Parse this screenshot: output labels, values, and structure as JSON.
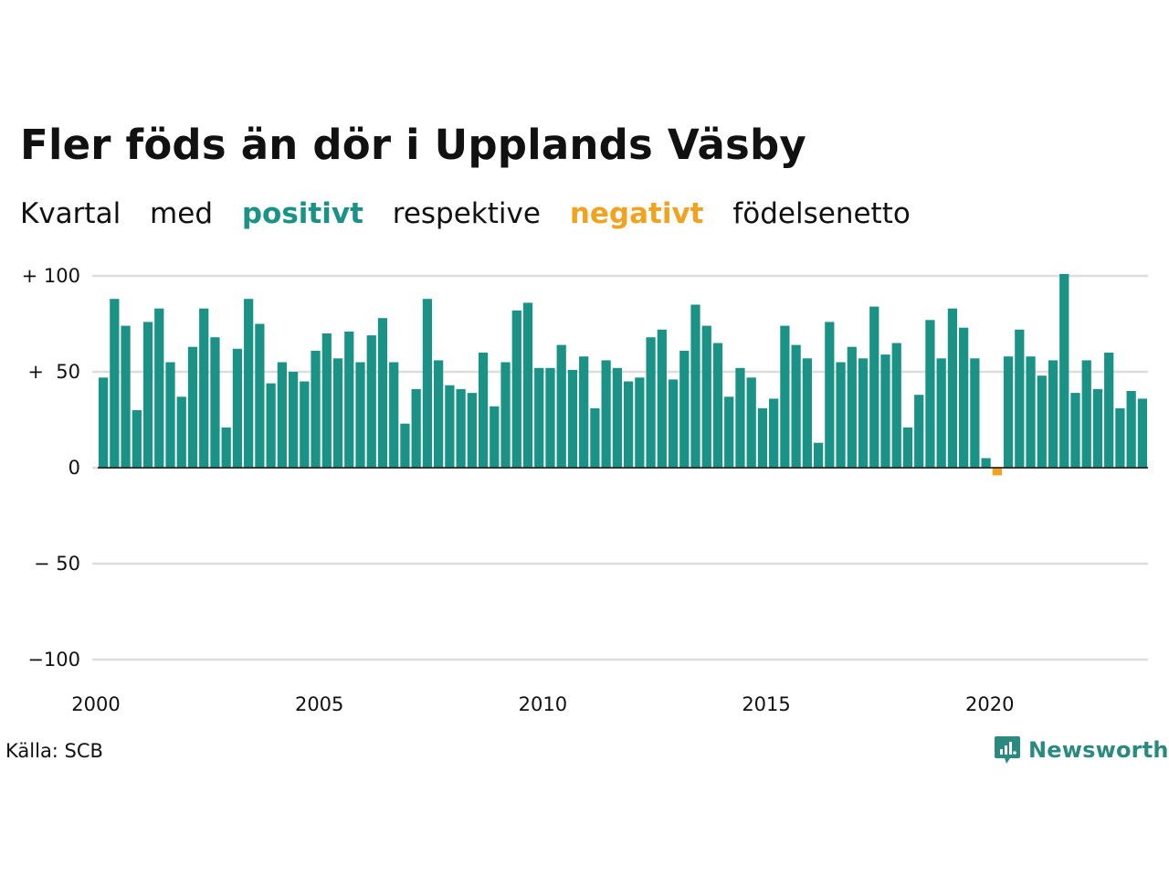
{
  "title": "Fler föds än dör i Upplands Väsby",
  "subtitle": {
    "w1": "Kvartal",
    "w2": "med",
    "positive": "positivt",
    "w3": "respektive",
    "negative": "negativt",
    "w4": "födelsenetto"
  },
  "source": "Källa: SCB",
  "brand": "Newsworthy",
  "colors": {
    "positive": "#1a9285",
    "negative": "#f2a21e",
    "grid": "#dddddd",
    "text": "#111111",
    "brand": "#2a8a7f"
  },
  "chart_data": {
    "type": "bar",
    "x_start": "2000 Q1",
    "x_frequency": "quarter",
    "ylim": [
      -100,
      100
    ],
    "y_ticks": [
      100,
      50,
      0,
      -50,
      -100
    ],
    "y_tick_labels": [
      "+ 100",
      "+  50",
      "0",
      "− 50",
      "−100"
    ],
    "x_ticks": [
      2000,
      2005,
      2010,
      2015,
      2020
    ],
    "x_tick_labels": [
      "2000",
      "2005",
      "2010",
      "2015",
      "2020"
    ],
    "grid": true,
    "values": [
      47,
      88,
      74,
      30,
      76,
      83,
      55,
      37,
      63,
      83,
      68,
      21,
      62,
      88,
      75,
      44,
      55,
      50,
      45,
      61,
      70,
      57,
      71,
      55,
      69,
      78,
      55,
      23,
      41,
      88,
      56,
      43,
      41,
      39,
      60,
      32,
      55,
      82,
      86,
      52,
      52,
      64,
      51,
      58,
      31,
      56,
      52,
      45,
      47,
      68,
      72,
      46,
      61,
      85,
      74,
      65,
      37,
      52,
      47,
      31,
      36,
      74,
      64,
      57,
      13,
      76,
      55,
      63,
      57,
      84,
      59,
      65,
      21,
      38,
      77,
      57,
      83,
      73,
      57,
      5,
      -4,
      58,
      72,
      58,
      48,
      56,
      101,
      39,
      56,
      41,
      60,
      31,
      40,
      36
    ]
  }
}
